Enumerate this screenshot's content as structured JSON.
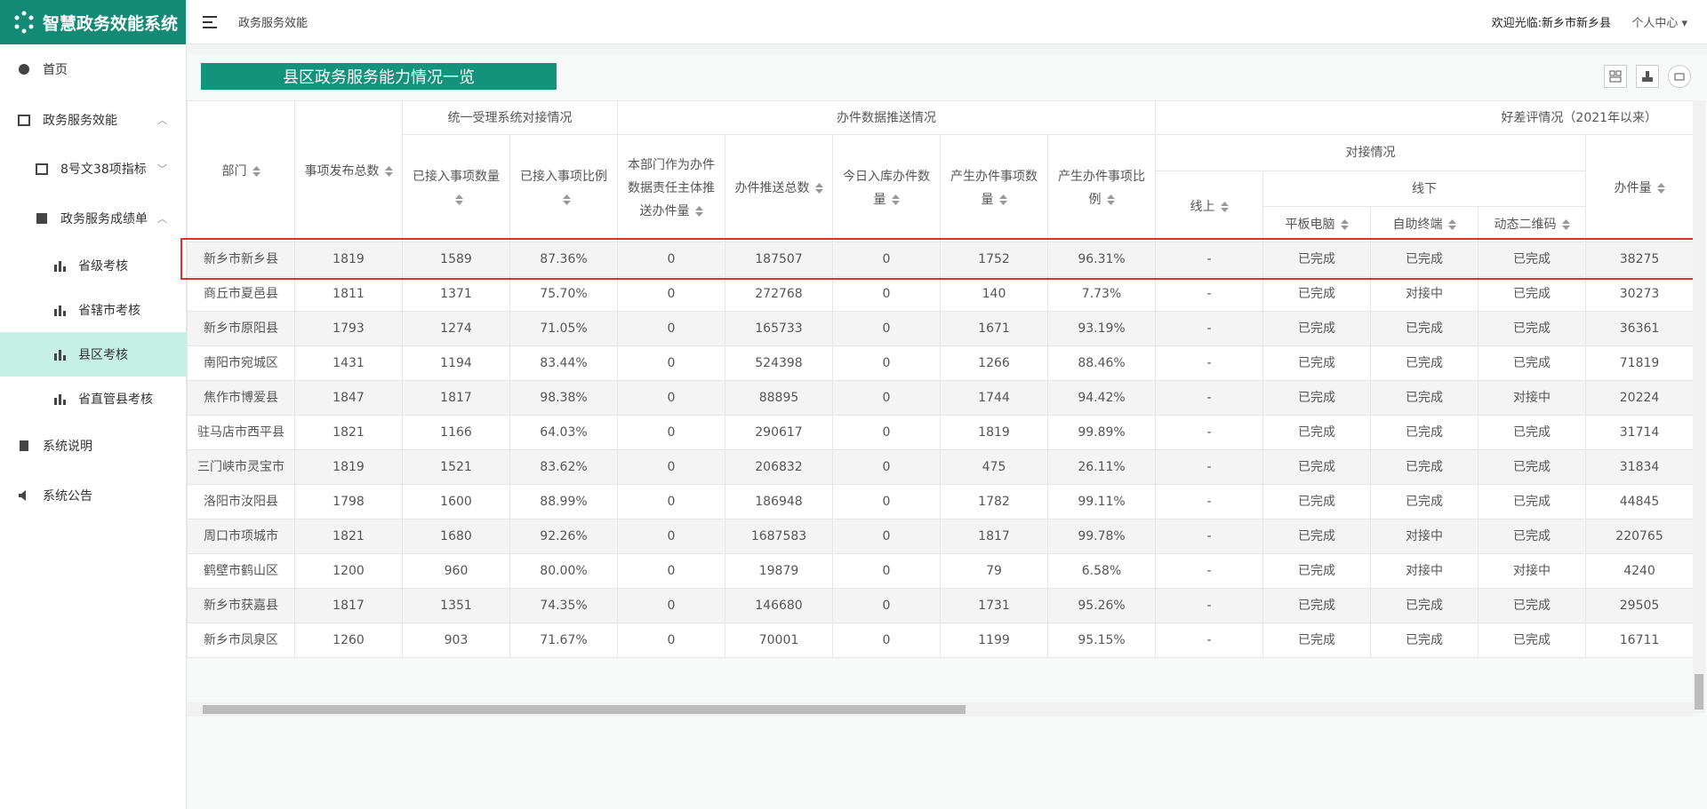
{
  "sidebar": {
    "logo": "智慧政务效能系统",
    "items": [
      "首页",
      "政务服务效能",
      "8号文38项指标",
      "政务服务成绩单",
      "省级考核",
      "省辖市考核",
      "县区考核",
      "省直管县考核",
      "系统说明",
      "系统公告"
    ]
  },
  "header": {
    "breadcrumb": "政务服务效能",
    "welcome": "欢迎光临:新乡市新乡县",
    "user_center": "个人中心"
  },
  "panel_title": "县区政务服务能力情况一览",
  "table": {
    "groups": {
      "unified": "统一受理系统对接情况",
      "push": "办件数据推送情况",
      "rating": "好差评情况（2021年以来）",
      "docking": "对接情况",
      "offline": "线下"
    },
    "columns": [
      "部门",
      "事项发布总数",
      "已接入事项数量",
      "已接入事项比例",
      "本部门作为办件数据责任主体推送办件量",
      "办件推送总数",
      "今日入库办件数量",
      "产生办件事项数量",
      "产生办件事项比例",
      "线上",
      "平板电脑",
      "自助终端",
      "动态二维码",
      "办件量"
    ],
    "rows": [
      [
        "新乡市新乡县",
        "1819",
        "1589",
        "87.36%",
        "0",
        "187507",
        "0",
        "1752",
        "96.31%",
        "-",
        "已完成",
        "已完成",
        "已完成",
        "38275"
      ],
      [
        "商丘市夏邑县",
        "1811",
        "1371",
        "75.70%",
        "0",
        "272768",
        "0",
        "140",
        "7.73%",
        "-",
        "已完成",
        "对接中",
        "已完成",
        "30273"
      ],
      [
        "新乡市原阳县",
        "1793",
        "1274",
        "71.05%",
        "0",
        "165733",
        "0",
        "1671",
        "93.19%",
        "-",
        "已完成",
        "已完成",
        "已完成",
        "36361"
      ],
      [
        "南阳市宛城区",
        "1431",
        "1194",
        "83.44%",
        "0",
        "524398",
        "0",
        "1266",
        "88.46%",
        "-",
        "已完成",
        "已完成",
        "已完成",
        "71819"
      ],
      [
        "焦作市博爱县",
        "1847",
        "1817",
        "98.38%",
        "0",
        "88895",
        "0",
        "1744",
        "94.42%",
        "-",
        "已完成",
        "已完成",
        "对接中",
        "20224"
      ],
      [
        "驻马店市西平县",
        "1821",
        "1166",
        "64.03%",
        "0",
        "290617",
        "0",
        "1819",
        "99.89%",
        "-",
        "已完成",
        "已完成",
        "已完成",
        "31714"
      ],
      [
        "三门峡市灵宝市",
        "1819",
        "1521",
        "83.62%",
        "0",
        "206832",
        "0",
        "475",
        "26.11%",
        "-",
        "已完成",
        "已完成",
        "已完成",
        "31834"
      ],
      [
        "洛阳市汝阳县",
        "1798",
        "1600",
        "88.99%",
        "0",
        "186948",
        "0",
        "1782",
        "99.11%",
        "-",
        "已完成",
        "已完成",
        "已完成",
        "44845"
      ],
      [
        "周口市项城市",
        "1821",
        "1680",
        "92.26%",
        "0",
        "1687583",
        "0",
        "1817",
        "99.78%",
        "-",
        "已完成",
        "对接中",
        "已完成",
        "220765"
      ],
      [
        "鹤壁市鹤山区",
        "1200",
        "960",
        "80.00%",
        "0",
        "19879",
        "0",
        "79",
        "6.58%",
        "-",
        "已完成",
        "对接中",
        "对接中",
        "4240"
      ],
      [
        "新乡市获嘉县",
        "1817",
        "1351",
        "74.35%",
        "0",
        "146680",
        "0",
        "1731",
        "95.26%",
        "-",
        "已完成",
        "已完成",
        "已完成",
        "29505"
      ],
      [
        "新乡市凤泉区",
        "1260",
        "903",
        "71.67%",
        "0",
        "70001",
        "0",
        "1199",
        "95.15%",
        "-",
        "已完成",
        "已完成",
        "已完成",
        "16711"
      ]
    ]
  }
}
